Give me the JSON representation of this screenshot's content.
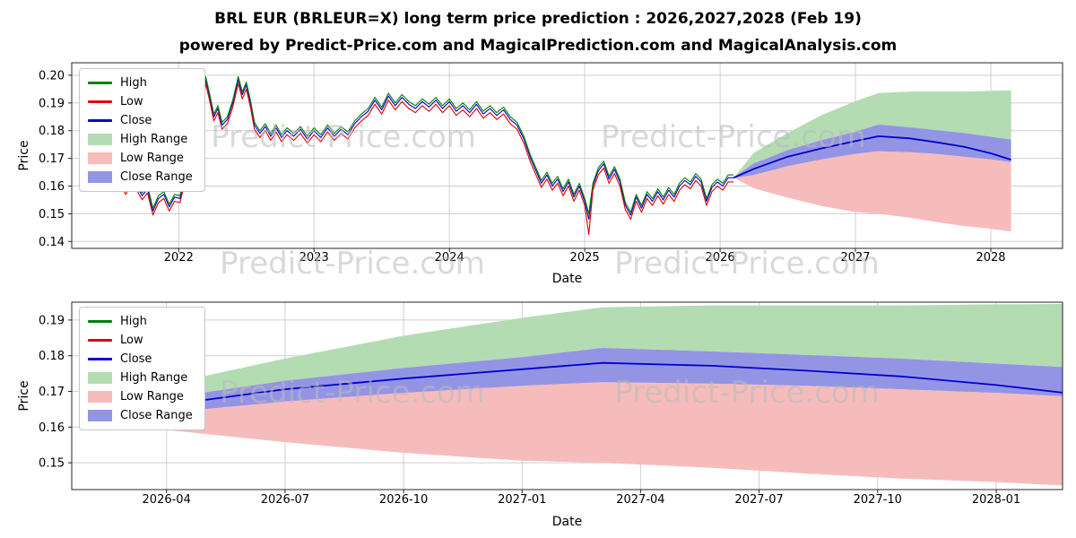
{
  "header": {
    "title": "BRL EUR (BRLEUR=X) long term price prediction : 2026,2027,2028 (Feb 19)",
    "subtitle": "powered by Predict-Price.com and MagicalPrediction.com and MagicalAnalysis.com"
  },
  "watermark": "Predict-Price.com",
  "colors": {
    "high_line": "#008000",
    "low_line": "#e00000",
    "close_line": "#0000cc",
    "high_fill": "#b3dcb3",
    "low_fill": "#f6bcbc",
    "close_fill": "#9494e4",
    "grid": "#cfcfcf",
    "spine": "#262626",
    "watermark_gray": "#b9b9b9"
  },
  "legend": {
    "items": [
      {
        "label": "High",
        "swatch": "line",
        "color": "#008000"
      },
      {
        "label": "Low",
        "swatch": "line",
        "color": "#e00000"
      },
      {
        "label": "Close",
        "swatch": "line",
        "color": "#0000cc"
      },
      {
        "label": "High Range",
        "swatch": "patch",
        "color": "#b3dcb3"
      },
      {
        "label": "Low Range",
        "swatch": "patch",
        "color": "#f6bcbc"
      },
      {
        "label": "Close Range",
        "swatch": "patch",
        "color": "#9494e4"
      }
    ]
  },
  "chart_data": [
    {
      "type": "line",
      "title": "",
      "xlabel": "Date",
      "ylabel": "Price",
      "xlim": [
        2021.21,
        2028.53
      ],
      "ylim": [
        0.1375,
        0.2045
      ],
      "grid": true,
      "legend_position": "upper left",
      "xticks": [
        [
          2022,
          "2022"
        ],
        [
          2023,
          "2023"
        ],
        [
          2024,
          "2024"
        ],
        [
          2025,
          "2025"
        ],
        [
          2026,
          "2026"
        ],
        [
          2027,
          "2027"
        ],
        [
          2028,
          "2028"
        ]
      ],
      "yticks": [
        [
          0.14,
          "0.14"
        ],
        [
          0.15,
          "0.15"
        ],
        [
          0.16,
          "0.16"
        ],
        [
          0.17,
          "0.17"
        ],
        [
          0.18,
          "0.18"
        ],
        [
          0.19,
          "0.19"
        ],
        [
          0.2,
          "0.20"
        ]
      ],
      "ohlc_columns": [
        "x",
        "high",
        "low",
        "close"
      ],
      "ohlc": [
        [
          2021.45,
          0.161,
          0.1585,
          0.16
        ],
        [
          2021.5,
          0.1635,
          0.161,
          0.1625
        ],
        [
          2021.53,
          0.1605,
          0.158,
          0.1595
        ],
        [
          2021.57,
          0.1628,
          0.1603,
          0.1618
        ],
        [
          2021.61,
          0.1595,
          0.157,
          0.1585
        ],
        [
          2021.65,
          0.164,
          0.1615,
          0.163
        ],
        [
          2021.69,
          0.161,
          0.1585,
          0.16
        ],
        [
          2021.73,
          0.1575,
          0.155,
          0.1565
        ],
        [
          2021.77,
          0.16,
          0.1575,
          0.159
        ],
        [
          2021.81,
          0.152,
          0.1495,
          0.151
        ],
        [
          2021.85,
          0.1565,
          0.154,
          0.1555
        ],
        [
          2021.89,
          0.158,
          0.1555,
          0.157
        ],
        [
          2021.93,
          0.1535,
          0.151,
          0.1525
        ],
        [
          2021.97,
          0.157,
          0.1545,
          0.156
        ],
        [
          2022.01,
          0.1565,
          0.154,
          0.1555
        ],
        [
          2022.04,
          0.163,
          0.1605,
          0.162
        ],
        [
          2022.08,
          0.177,
          0.1745,
          0.176
        ],
        [
          2022.11,
          0.197,
          0.1945,
          0.196
        ],
        [
          2022.14,
          0.2015,
          0.199,
          0.2005
        ],
        [
          2022.17,
          0.188,
          0.1855,
          0.187
        ],
        [
          2022.2,
          0.1995,
          0.197,
          0.1985
        ],
        [
          2022.23,
          0.193,
          0.1905,
          0.192
        ],
        [
          2022.26,
          0.186,
          0.1835,
          0.185
        ],
        [
          2022.29,
          0.189,
          0.1865,
          0.188
        ],
        [
          2022.32,
          0.183,
          0.1805,
          0.182
        ],
        [
          2022.36,
          0.185,
          0.1825,
          0.184
        ],
        [
          2022.4,
          0.191,
          0.1885,
          0.19
        ],
        [
          2022.44,
          0.1995,
          0.197,
          0.1985
        ],
        [
          2022.47,
          0.194,
          0.1915,
          0.193
        ],
        [
          2022.5,
          0.1975,
          0.195,
          0.1965
        ],
        [
          2022.53,
          0.191,
          0.1885,
          0.19
        ],
        [
          2022.56,
          0.183,
          0.1805,
          0.182
        ],
        [
          2022.6,
          0.18,
          0.1775,
          0.179
        ],
        [
          2022.64,
          0.1825,
          0.18,
          0.1815
        ],
        [
          2022.68,
          0.179,
          0.1765,
          0.178
        ],
        [
          2022.72,
          0.182,
          0.1795,
          0.181
        ],
        [
          2022.76,
          0.1785,
          0.176,
          0.1775
        ],
        [
          2022.8,
          0.181,
          0.1785,
          0.18
        ],
        [
          2022.85,
          0.179,
          0.1765,
          0.178
        ],
        [
          2022.9,
          0.1815,
          0.179,
          0.1805
        ],
        [
          2022.95,
          0.178,
          0.1755,
          0.177
        ],
        [
          2023.0,
          0.181,
          0.1785,
          0.18
        ],
        [
          2023.05,
          0.1785,
          0.176,
          0.1775
        ],
        [
          2023.1,
          0.182,
          0.1795,
          0.181
        ],
        [
          2023.15,
          0.179,
          0.1765,
          0.178
        ],
        [
          2023.2,
          0.1815,
          0.179,
          0.1805
        ],
        [
          2023.25,
          0.1795,
          0.177,
          0.1785
        ],
        [
          2023.3,
          0.1835,
          0.181,
          0.1825
        ],
        [
          2023.35,
          0.186,
          0.1835,
          0.185
        ],
        [
          2023.4,
          0.188,
          0.1855,
          0.187
        ],
        [
          2023.45,
          0.192,
          0.1895,
          0.191
        ],
        [
          2023.5,
          0.1885,
          0.186,
          0.1875
        ],
        [
          2023.55,
          0.1935,
          0.191,
          0.1925
        ],
        [
          2023.6,
          0.19,
          0.1875,
          0.189
        ],
        [
          2023.65,
          0.193,
          0.1905,
          0.192
        ],
        [
          2023.7,
          0.1905,
          0.188,
          0.1895
        ],
        [
          2023.75,
          0.189,
          0.1865,
          0.188
        ],
        [
          2023.8,
          0.1915,
          0.189,
          0.1905
        ],
        [
          2023.85,
          0.1895,
          0.187,
          0.1885
        ],
        [
          2023.9,
          0.192,
          0.1895,
          0.191
        ],
        [
          2023.95,
          0.189,
          0.1865,
          0.188
        ],
        [
          2024.0,
          0.1915,
          0.189,
          0.1905
        ],
        [
          2024.05,
          0.188,
          0.1855,
          0.187
        ],
        [
          2024.1,
          0.19,
          0.1875,
          0.189
        ],
        [
          2024.15,
          0.1875,
          0.185,
          0.1865
        ],
        [
          2024.2,
          0.1905,
          0.188,
          0.1895
        ],
        [
          2024.25,
          0.187,
          0.1845,
          0.186
        ],
        [
          2024.3,
          0.189,
          0.1865,
          0.188
        ],
        [
          2024.35,
          0.1865,
          0.184,
          0.1855
        ],
        [
          2024.4,
          0.1885,
          0.186,
          0.1875
        ],
        [
          2024.45,
          0.185,
          0.1825,
          0.184
        ],
        [
          2024.5,
          0.183,
          0.1805,
          0.182
        ],
        [
          2024.55,
          0.178,
          0.1755,
          0.177
        ],
        [
          2024.6,
          0.171,
          0.1685,
          0.17
        ],
        [
          2024.64,
          0.1665,
          0.164,
          0.1655
        ],
        [
          2024.68,
          0.162,
          0.1595,
          0.161
        ],
        [
          2024.72,
          0.165,
          0.1625,
          0.164
        ],
        [
          2024.76,
          0.161,
          0.1585,
          0.16
        ],
        [
          2024.8,
          0.1635,
          0.161,
          0.1625
        ],
        [
          2024.84,
          0.159,
          0.1565,
          0.158
        ],
        [
          2024.88,
          0.1625,
          0.16,
          0.1615
        ],
        [
          2024.92,
          0.157,
          0.1545,
          0.156
        ],
        [
          2024.96,
          0.161,
          0.1585,
          0.16
        ],
        [
          2025.0,
          0.1555,
          0.153,
          0.1545
        ],
        [
          2025.03,
          0.15,
          0.1425,
          0.148
        ],
        [
          2025.06,
          0.161,
          0.1585,
          0.16
        ],
        [
          2025.1,
          0.1665,
          0.164,
          0.1655
        ],
        [
          2025.14,
          0.169,
          0.1665,
          0.168
        ],
        [
          2025.18,
          0.1635,
          0.161,
          0.1625
        ],
        [
          2025.22,
          0.167,
          0.1645,
          0.166
        ],
        [
          2025.26,
          0.1625,
          0.16,
          0.1615
        ],
        [
          2025.3,
          0.154,
          0.1515,
          0.153
        ],
        [
          2025.34,
          0.1505,
          0.148,
          0.1495
        ],
        [
          2025.38,
          0.157,
          0.1545,
          0.156
        ],
        [
          2025.42,
          0.153,
          0.1505,
          0.152
        ],
        [
          2025.46,
          0.158,
          0.1555,
          0.157
        ],
        [
          2025.5,
          0.1555,
          0.153,
          0.1545
        ],
        [
          2025.54,
          0.159,
          0.1565,
          0.158
        ],
        [
          2025.58,
          0.156,
          0.1535,
          0.155
        ],
        [
          2025.62,
          0.1595,
          0.157,
          0.1585
        ],
        [
          2025.66,
          0.157,
          0.1545,
          0.156
        ],
        [
          2025.7,
          0.161,
          0.1585,
          0.16
        ],
        [
          2025.74,
          0.163,
          0.1605,
          0.162
        ],
        [
          2025.78,
          0.1615,
          0.159,
          0.1605
        ],
        [
          2025.82,
          0.1645,
          0.162,
          0.1635
        ],
        [
          2025.86,
          0.1625,
          0.16,
          0.1615
        ],
        [
          2025.9,
          0.1555,
          0.153,
          0.1545
        ],
        [
          2025.94,
          0.1605,
          0.158,
          0.1595
        ],
        [
          2025.98,
          0.1625,
          0.16,
          0.1615
        ],
        [
          2026.02,
          0.161,
          0.1585,
          0.16
        ],
        [
          2026.06,
          0.164,
          0.1615,
          0.163
        ],
        [
          2026.1,
          0.164,
          0.1615,
          0.163
        ]
      ],
      "forecast_columns": [
        "x",
        "high_upper",
        "low_lower",
        "close_upper",
        "close_lower",
        "close"
      ],
      "forecast": [
        [
          2026.1,
          0.163,
          0.163,
          0.1632,
          0.1628,
          0.163
        ],
        [
          2026.25,
          0.172,
          0.1592,
          0.1682,
          0.164,
          0.1662
        ],
        [
          2026.5,
          0.1792,
          0.1558,
          0.173,
          0.1672,
          0.1706
        ],
        [
          2026.75,
          0.1856,
          0.1528,
          0.1766,
          0.1696,
          0.1736
        ],
        [
          2027.0,
          0.1906,
          0.1506,
          0.1796,
          0.1716,
          0.1762
        ],
        [
          2027.17,
          0.1936,
          0.15,
          0.1822,
          0.1726,
          0.178
        ],
        [
          2027.4,
          0.1941,
          0.1486,
          0.1812,
          0.1722,
          0.1772
        ],
        [
          2027.6,
          0.1941,
          0.147,
          0.1802,
          0.1716,
          0.1758
        ],
        [
          2027.8,
          0.1941,
          0.1456,
          0.1792,
          0.1706,
          0.1742
        ],
        [
          2028.0,
          0.1944,
          0.1446,
          0.1778,
          0.1696,
          0.1718
        ],
        [
          2028.15,
          0.1945,
          0.1436,
          0.1768,
          0.1686,
          0.1695
        ]
      ]
    },
    {
      "type": "line",
      "title": "",
      "xlabel": "Date",
      "ylabel": "Price",
      "xlim": [
        2026.05,
        2028.14
      ],
      "ylim": [
        0.1425,
        0.195
      ],
      "grid": true,
      "legend_position": "upper left",
      "xticks": [
        [
          2026.25,
          "2026-04"
        ],
        [
          2026.5,
          "2026-07"
        ],
        [
          2026.75,
          "2026-10"
        ],
        [
          2027.0,
          "2027-01"
        ],
        [
          2027.25,
          "2027-04"
        ],
        [
          2027.5,
          "2027-07"
        ],
        [
          2027.75,
          "2027-10"
        ],
        [
          2028.0,
          "2028-01"
        ]
      ],
      "yticks": [
        [
          0.15,
          "0.15"
        ],
        [
          0.16,
          "0.16"
        ],
        [
          0.17,
          "0.17"
        ],
        [
          0.18,
          "0.18"
        ],
        [
          0.19,
          "0.19"
        ]
      ],
      "forecast_columns": [
        "x",
        "high_upper",
        "low_lower",
        "close_upper",
        "close_lower",
        "close"
      ],
      "forecast": [
        [
          2026.1,
          0.163,
          0.163,
          0.1632,
          0.1628,
          0.163
        ],
        [
          2026.25,
          0.172,
          0.1592,
          0.1682,
          0.164,
          0.1662
        ],
        [
          2026.5,
          0.1792,
          0.1558,
          0.173,
          0.1672,
          0.1706
        ],
        [
          2026.75,
          0.1856,
          0.1528,
          0.1766,
          0.1696,
          0.1736
        ],
        [
          2027.0,
          0.1906,
          0.1506,
          0.1796,
          0.1716,
          0.1762
        ],
        [
          2027.17,
          0.1936,
          0.15,
          0.1822,
          0.1726,
          0.178
        ],
        [
          2027.4,
          0.1941,
          0.1486,
          0.1812,
          0.1722,
          0.1772
        ],
        [
          2027.6,
          0.1941,
          0.147,
          0.1802,
          0.1716,
          0.1758
        ],
        [
          2027.8,
          0.1941,
          0.1456,
          0.1792,
          0.1706,
          0.1742
        ],
        [
          2028.0,
          0.1944,
          0.1446,
          0.1778,
          0.1696,
          0.1718
        ],
        [
          2028.15,
          0.1945,
          0.1436,
          0.1768,
          0.1686,
          0.1695
        ]
      ]
    }
  ]
}
